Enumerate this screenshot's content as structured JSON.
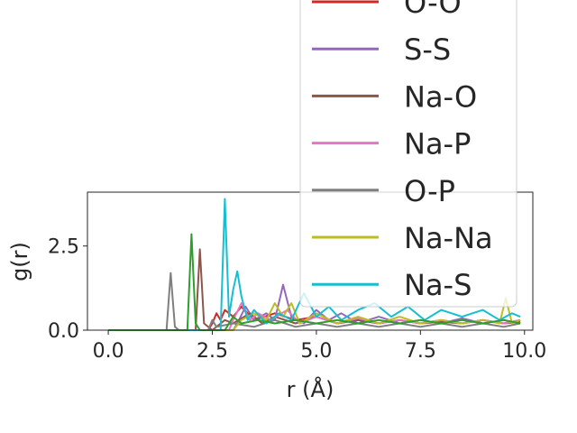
{
  "chart_data": {
    "type": "line",
    "title": "",
    "xlabel": "r (Å)",
    "ylabel": "g(r)",
    "xlim": [
      -0.5,
      10.2
    ],
    "ylim": [
      0,
      4.1
    ],
    "xticks": [
      0.0,
      2.5,
      5.0,
      7.5,
      10.0
    ],
    "xtick_labels": [
      "0.0",
      "2.5",
      "5.0",
      "7.5",
      "10.0"
    ],
    "yticks": [
      0.0,
      2.5
    ],
    "ytick_labels": [
      "0.0",
      "2.5"
    ],
    "grid": false,
    "legend_position": "upper-right",
    "series": [
      {
        "name": "O-O",
        "color": "#d62728",
        "points": [
          [
            0,
            0
          ],
          [
            2.4,
            0
          ],
          [
            2.5,
            0.2
          ],
          [
            2.6,
            0.5
          ],
          [
            2.7,
            0.3
          ],
          [
            2.8,
            0.6
          ],
          [
            3.0,
            0.4
          ],
          [
            3.2,
            0.7
          ],
          [
            3.5,
            0.3
          ],
          [
            4.0,
            0.5
          ],
          [
            4.5,
            0.3
          ],
          [
            5.0,
            0.4
          ],
          [
            5.5,
            0.2
          ],
          [
            6.0,
            0.3
          ],
          [
            6.5,
            0.2
          ],
          [
            7.0,
            0.3
          ],
          [
            7.5,
            0.2
          ],
          [
            8.0,
            0.3
          ],
          [
            8.5,
            0.2
          ],
          [
            9.0,
            0.3
          ],
          [
            9.5,
            0.2
          ],
          [
            9.9,
            0.3
          ]
        ]
      },
      {
        "name": "S-S",
        "color": "#9467bd",
        "points": [
          [
            0,
            0
          ],
          [
            3.0,
            0
          ],
          [
            3.1,
            0.2
          ],
          [
            3.3,
            0.7
          ],
          [
            3.5,
            0.3
          ],
          [
            3.8,
            0.5
          ],
          [
            4.0,
            0.3
          ],
          [
            4.2,
            1.35
          ],
          [
            4.4,
            0.4
          ],
          [
            4.7,
            0.2
          ],
          [
            5.0,
            0.6
          ],
          [
            5.3,
            0.3
          ],
          [
            5.6,
            0.5
          ],
          [
            6.0,
            0.2
          ],
          [
            6.5,
            0.4
          ],
          [
            7.0,
            0.2
          ],
          [
            7.5,
            0.3
          ],
          [
            8.0,
            0.2
          ],
          [
            8.5,
            0.35
          ],
          [
            9.0,
            0.2
          ],
          [
            9.5,
            0.3
          ],
          [
            9.9,
            0.2
          ]
        ]
      },
      {
        "name": "Na-O",
        "color": "#8c564b",
        "points": [
          [
            0,
            0
          ],
          [
            2.1,
            0
          ],
          [
            2.2,
            2.4
          ],
          [
            2.3,
            0.2
          ],
          [
            2.5,
            0
          ],
          [
            2.8,
            0.3
          ],
          [
            3.0,
            0.2
          ],
          [
            3.4,
            0.5
          ],
          [
            3.7,
            0.2
          ],
          [
            4.0,
            0.4
          ],
          [
            4.5,
            0.2
          ],
          [
            5.0,
            0.4
          ],
          [
            5.5,
            0.2
          ],
          [
            6.0,
            0.3
          ],
          [
            6.5,
            0.2
          ],
          [
            7.0,
            0.3
          ],
          [
            7.5,
            0.2
          ],
          [
            8.0,
            0.25
          ],
          [
            8.5,
            0.2
          ],
          [
            9.0,
            0.3
          ],
          [
            9.5,
            0.2
          ],
          [
            9.9,
            0.25
          ]
        ]
      },
      {
        "name": "Na-P",
        "color": "#e377c2",
        "points": [
          [
            0,
            0
          ],
          [
            2.9,
            0
          ],
          [
            3.0,
            0.3
          ],
          [
            3.2,
            0.8
          ],
          [
            3.4,
            0.3
          ],
          [
            3.6,
            0.5
          ],
          [
            3.9,
            0.3
          ],
          [
            4.3,
            0.6
          ],
          [
            4.6,
            0.2
          ],
          [
            5.0,
            0.4
          ],
          [
            5.5,
            0.2
          ],
          [
            6.0,
            0.35
          ],
          [
            6.5,
            0.2
          ],
          [
            7.0,
            0.3
          ],
          [
            7.5,
            0.2
          ],
          [
            8.0,
            0.3
          ],
          [
            8.5,
            0.2
          ],
          [
            9.0,
            0.3
          ],
          [
            9.5,
            0.2
          ],
          [
            9.9,
            0.3
          ]
        ]
      },
      {
        "name": "O-P",
        "color": "#7f7f7f",
        "points": [
          [
            0,
            0
          ],
          [
            1.4,
            0
          ],
          [
            1.5,
            1.7
          ],
          [
            1.6,
            0.1
          ],
          [
            1.7,
            0
          ],
          [
            2.4,
            0
          ],
          [
            2.5,
            0.3
          ],
          [
            2.6,
            0.1
          ],
          [
            3.0,
            0.2
          ],
          [
            3.5,
            0.1
          ],
          [
            4.0,
            0.3
          ],
          [
            4.5,
            0.1
          ],
          [
            5.0,
            0.2
          ],
          [
            5.5,
            0.1
          ],
          [
            6.0,
            0.2
          ],
          [
            6.5,
            0.1
          ],
          [
            7.0,
            0.2
          ],
          [
            7.5,
            0.1
          ],
          [
            8.0,
            0.2
          ],
          [
            8.5,
            0.1
          ],
          [
            9.0,
            0.2
          ],
          [
            9.5,
            0.1
          ],
          [
            9.9,
            0.2
          ]
        ]
      },
      {
        "name": "Na-Na",
        "color": "#bcbd22",
        "points": [
          [
            0,
            0
          ],
          [
            3.0,
            0
          ],
          [
            3.2,
            0.3
          ],
          [
            3.5,
            0.5
          ],
          [
            3.8,
            0.3
          ],
          [
            4.0,
            0.8
          ],
          [
            4.2,
            0.4
          ],
          [
            4.4,
            0.8
          ],
          [
            4.6,
            0.2
          ],
          [
            5.0,
            0.5
          ],
          [
            5.5,
            0.2
          ],
          [
            6.0,
            0.4
          ],
          [
            6.5,
            0.2
          ],
          [
            7.0,
            0.4
          ],
          [
            7.5,
            0.2
          ],
          [
            8.0,
            0.3
          ],
          [
            8.5,
            0.2
          ],
          [
            9.0,
            0.3
          ],
          [
            9.4,
            0.2
          ],
          [
            9.55,
            0.95
          ],
          [
            9.7,
            0.2
          ],
          [
            9.9,
            0.3
          ]
        ]
      },
      {
        "name": "Na-S",
        "color": "#17becf",
        "points": [
          [
            0,
            0
          ],
          [
            2.7,
            0
          ],
          [
            2.8,
            3.9
          ],
          [
            2.9,
            0.4
          ],
          [
            3.0,
            1.2
          ],
          [
            3.1,
            1.75
          ],
          [
            3.2,
            1.0
          ],
          [
            3.35,
            0.3
          ],
          [
            3.5,
            0.6
          ],
          [
            3.8,
            0.2
          ],
          [
            4.1,
            0.5
          ],
          [
            4.4,
            0.3
          ],
          [
            4.7,
            1.1
          ],
          [
            5.0,
            0.4
          ],
          [
            5.3,
            0.7
          ],
          [
            5.6,
            0.3
          ],
          [
            6.0,
            0.6
          ],
          [
            6.4,
            0.8
          ],
          [
            6.8,
            0.4
          ],
          [
            7.2,
            0.7
          ],
          [
            7.6,
            0.3
          ],
          [
            8.0,
            0.6
          ],
          [
            8.5,
            0.4
          ],
          [
            9.0,
            0.6
          ],
          [
            9.4,
            0.3
          ],
          [
            9.7,
            0.5
          ],
          [
            9.9,
            0.4
          ]
        ]
      },
      {
        "name": "",
        "color": "#2ca02c",
        "points": [
          [
            0,
            0
          ],
          [
            1.9,
            0
          ],
          [
            2.0,
            2.85
          ],
          [
            2.1,
            0.2
          ],
          [
            2.2,
            0
          ],
          [
            2.8,
            0
          ],
          [
            3.0,
            0.4
          ],
          [
            3.2,
            0.2
          ],
          [
            3.6,
            0.3
          ],
          [
            4.0,
            0.2
          ],
          [
            4.5,
            0.3
          ],
          [
            5.0,
            0.2
          ],
          [
            5.5,
            0.3
          ],
          [
            6.0,
            0.2
          ],
          [
            6.5,
            0.3
          ],
          [
            7.0,
            0.2
          ],
          [
            7.5,
            0.3
          ],
          [
            8.0,
            0.2
          ],
          [
            8.5,
            0.3
          ],
          [
            9.0,
            0.2
          ],
          [
            9.5,
            0.3
          ],
          [
            9.9,
            0.2
          ]
        ]
      }
    ]
  }
}
